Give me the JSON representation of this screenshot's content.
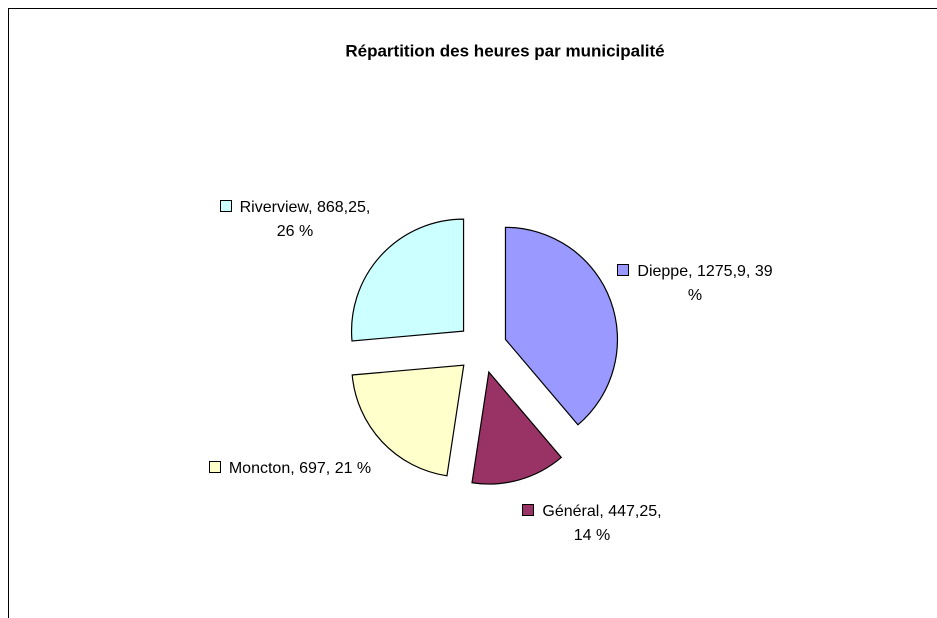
{
  "chart_data": {
    "type": "pie",
    "title": "Répartition des heures par municipalité",
    "categories": [
      "Dieppe",
      "Général",
      "Moncton",
      "Riverview"
    ],
    "values": [
      1275.9,
      447.25,
      697,
      868.25
    ],
    "value_labels": [
      "Dieppe, 1275,9, 39 %",
      "Général, 447,25, 14 %",
      "Moncton, 697, 21 %",
      "Riverview, 868,25, 26 %"
    ],
    "colors": [
      "#9999ff",
      "#993366",
      "#ffffcc",
      "#ccffff"
    ],
    "exploded": true
  }
}
